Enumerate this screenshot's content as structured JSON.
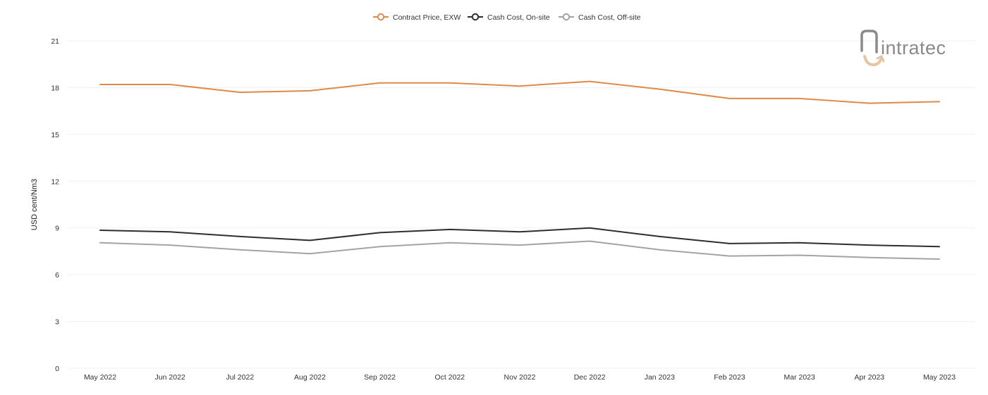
{
  "brand": {
    "logo_text": "intratec"
  },
  "colors": {
    "contract_price": "#e08a49",
    "cash_cost_onsite": "#2e2e2e",
    "cash_cost_offsite": "#a3a3a3",
    "grid": "#f0f0f0",
    "logo_gray": "#8a8a8a",
    "logo_accent": "#e8c4a6"
  },
  "chart_data": {
    "type": "line",
    "title": "",
    "xlabel": "",
    "ylabel": "USD cent/Nm3",
    "ylim": [
      0,
      21
    ],
    "yticks": [
      0,
      3,
      6,
      9,
      12,
      15,
      18,
      21
    ],
    "grid": "horizontal",
    "legend_position": "top-center",
    "categories": [
      "May 2022",
      "Jun 2022",
      "Jul 2022",
      "Aug 2022",
      "Sep 2022",
      "Oct 2022",
      "Nov 2022",
      "Dec 2022",
      "Jan 2023",
      "Feb 2023",
      "Mar 2023",
      "Apr 2023",
      "May 2023"
    ],
    "series": [
      {
        "name": "Contract Price, EXW",
        "color": "#e08a49",
        "values": [
          18.2,
          18.2,
          17.7,
          17.8,
          18.3,
          18.3,
          18.1,
          18.4,
          17.9,
          17.3,
          17.3,
          17.0,
          17.1
        ]
      },
      {
        "name": "Cash Cost, On-site",
        "color": "#2e2e2e",
        "values": [
          8.85,
          8.75,
          8.45,
          8.2,
          8.7,
          8.9,
          8.75,
          9.0,
          8.45,
          8.0,
          8.05,
          7.9,
          7.8
        ]
      },
      {
        "name": "Cash Cost, Off-site",
        "color": "#a3a3a3",
        "values": [
          8.05,
          7.9,
          7.6,
          7.35,
          7.8,
          8.05,
          7.9,
          8.15,
          7.6,
          7.2,
          7.25,
          7.1,
          7.0
        ]
      }
    ]
  }
}
